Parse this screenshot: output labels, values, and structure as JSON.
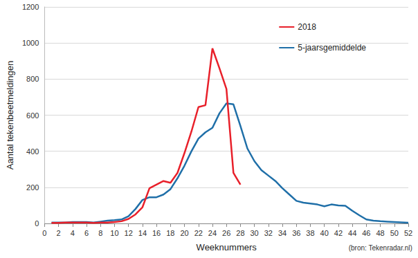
{
  "chart_data": {
    "type": "line",
    "x_label": "Weeknummers",
    "y_label": "Aantal tekenbeetmeldingen",
    "annotations": [
      "(bron: Tekenradar.nl)"
    ],
    "x": [
      1,
      2,
      3,
      4,
      5,
      6,
      7,
      8,
      9,
      10,
      11,
      12,
      13,
      14,
      15,
      16,
      17,
      18,
      19,
      20,
      21,
      22,
      23,
      24,
      25,
      26,
      27,
      28,
      29,
      30,
      31,
      32,
      33,
      34,
      35,
      36,
      37,
      38,
      39,
      40,
      41,
      42,
      43,
      44,
      45,
      46,
      47,
      48,
      49,
      50,
      51,
      52
    ],
    "series": [
      {
        "name": "2018",
        "color": "#e8202a",
        "values": [
          3,
          3,
          5,
          5,
          5,
          5,
          3,
          5,
          5,
          8,
          12,
          25,
          50,
          90,
          195,
          215,
          235,
          225,
          280,
          390,
          510,
          645,
          655,
          970,
          860,
          745,
          280,
          215,
          null,
          null,
          null,
          null,
          null,
          null,
          null,
          null,
          null,
          null,
          null,
          null,
          null,
          null,
          null,
          null,
          null,
          null,
          null,
          null,
          null,
          null,
          null,
          null
        ]
      },
      {
        "name": "5-jaarsgemiddelde",
        "color": "#1f6fa8",
        "values": [
          5,
          5,
          5,
          8,
          8,
          8,
          5,
          10,
          15,
          18,
          22,
          40,
          80,
          130,
          145,
          145,
          160,
          190,
          250,
          320,
          400,
          470,
          505,
          530,
          610,
          665,
          660,
          540,
          415,
          345,
          295,
          265,
          235,
          195,
          160,
          125,
          115,
          110,
          105,
          95,
          105,
          100,
          98,
          70,
          45,
          22,
          15,
          12,
          10,
          8,
          6,
          4
        ]
      }
    ],
    "xlim": [
      0,
      52
    ],
    "xticks": [
      0,
      2,
      4,
      6,
      8,
      10,
      12,
      14,
      16,
      18,
      20,
      22,
      24,
      26,
      28,
      30,
      32,
      34,
      36,
      38,
      40,
      42,
      44,
      46,
      48,
      50,
      52
    ],
    "ylim": [
      0,
      1200
    ],
    "yticks": [
      0,
      200,
      400,
      600,
      800,
      1000,
      1200
    ],
    "grid": true,
    "legend": "upper right"
  }
}
